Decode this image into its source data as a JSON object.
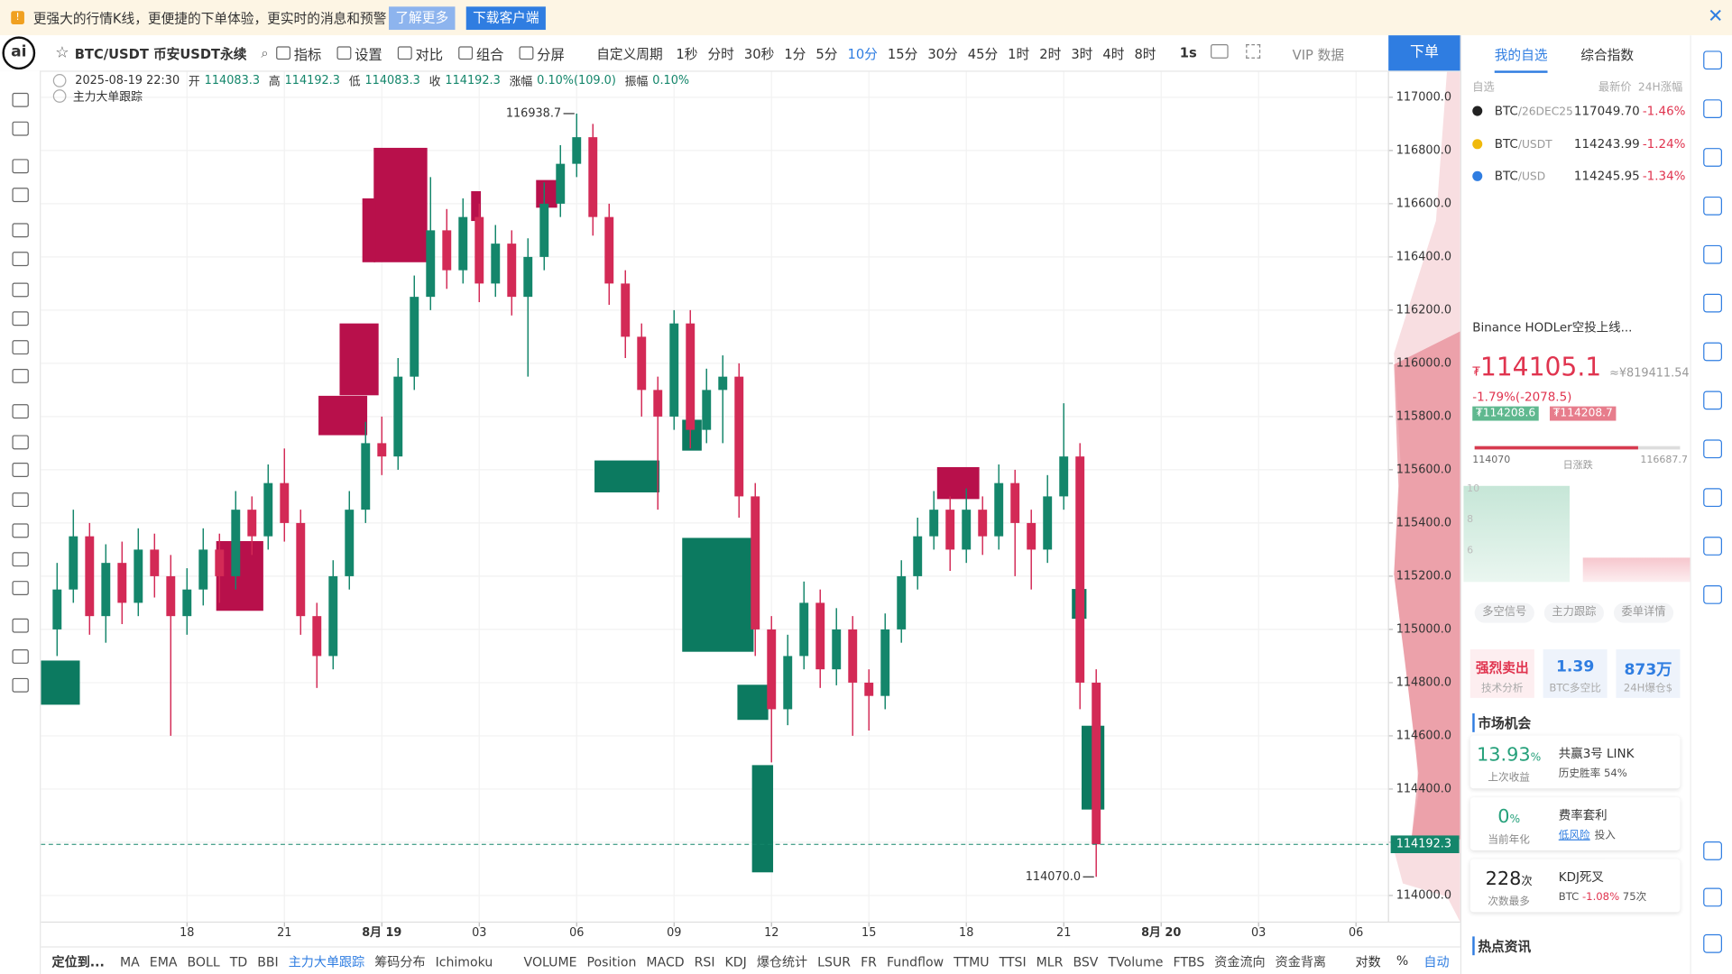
{
  "banner": {
    "text": "更强大的行情K线，更便捷的下单体验，更实时的消息和预警",
    "learn_more": "了解更多",
    "download": "下载客户端"
  },
  "toolbar": {
    "symbol": "BTC/USDT 币安USDT永续",
    "tools": [
      "指标",
      "设置",
      "对比",
      "组合",
      "分屏"
    ],
    "custom_period": "自定义周期",
    "periods": [
      "1秒",
      "分时",
      "30秒",
      "1分",
      "5分",
      "10分",
      "15分",
      "30分",
      "45分",
      "1时",
      "2时",
      "3时",
      "4时",
      "8时"
    ],
    "active_period": "10分",
    "resolution": "1s",
    "vip": "VIP 数据",
    "order": "下单"
  },
  "info": {
    "datetime": "2025-08-19 22:30",
    "fields": [
      {
        "label": "开",
        "value": "114083.3"
      },
      {
        "label": "高",
        "value": "114192.3"
      },
      {
        "label": "低",
        "value": "114083.3"
      },
      {
        "label": "收",
        "value": "114192.3"
      },
      {
        "label": "涨幅",
        "value": "0.10%(109.0)"
      },
      {
        "label": "振幅",
        "value": "0.10%"
      }
    ]
  },
  "indicator_label": "主力大单跟踪",
  "chart_data": {
    "type": "candlestick",
    "up_color": "#14866b",
    "down_color": "#d32a56",
    "xlim": [
      -9,
      74
    ],
    "ylim": [
      113900,
      117100
    ],
    "grid": true,
    "xticks": [
      {
        "value": 0,
        "label": "18"
      },
      {
        "value": 6,
        "label": "21"
      },
      {
        "value": 12,
        "label": "8月 19"
      },
      {
        "value": 18,
        "label": "03"
      },
      {
        "value": 24,
        "label": "06"
      },
      {
        "value": 30,
        "label": "09"
      },
      {
        "value": 36,
        "label": "12"
      },
      {
        "value": 42,
        "label": "15"
      },
      {
        "value": 48,
        "label": "18"
      },
      {
        "value": 54,
        "label": "21"
      },
      {
        "value": 60,
        "label": "8月 20"
      },
      {
        "value": 66,
        "label": "03"
      },
      {
        "value": 72,
        "label": "06"
      }
    ],
    "yticks": [
      {
        "value": 114000,
        "label": "114000.0"
      },
      {
        "value": 114200,
        "label": "114200.0"
      },
      {
        "value": 114400,
        "label": "114400.0"
      },
      {
        "value": 114600,
        "label": "114600.0"
      },
      {
        "value": 114800,
        "label": "114800.0"
      },
      {
        "value": 115000,
        "label": "115000.0"
      },
      {
        "value": 115200,
        "label": "115200.0"
      },
      {
        "value": 115400,
        "label": "115400.0"
      },
      {
        "value": 115600,
        "label": "115600.0"
      },
      {
        "value": 115800,
        "label": "115800.0"
      },
      {
        "value": 116000,
        "label": "116000.0"
      },
      {
        "value": 116200,
        "label": "116200.0"
      },
      {
        "value": 116400,
        "label": "116400.0"
      },
      {
        "value": 116600,
        "label": "116600.0"
      },
      {
        "value": 116800,
        "label": "116800.0"
      },
      {
        "value": 117000,
        "label": "117000.0"
      }
    ],
    "x": [
      -8,
      -7,
      -6,
      -5,
      -4,
      -3,
      -2,
      -1,
      0,
      1,
      2,
      3,
      4,
      5,
      6,
      7,
      8,
      9,
      10,
      11,
      12,
      13,
      14,
      15,
      16,
      17,
      18,
      19,
      20,
      21,
      22,
      23,
      24,
      25,
      26,
      27,
      28,
      29,
      30,
      31,
      32,
      33,
      34,
      35,
      36,
      37,
      38,
      39,
      40,
      41,
      42,
      43,
      44,
      45,
      46,
      47,
      48,
      49,
      50,
      51,
      52,
      53,
      54,
      55,
      56
    ],
    "open": [
      115000,
      115150,
      115350,
      115050,
      115250,
      115100,
      115300,
      115200,
      115050,
      115150,
      115300,
      115200,
      115450,
      115350,
      115550,
      115400,
      115050,
      114900,
      115200,
      115450,
      115700,
      115650,
      115950,
      116250,
      116500,
      116350,
      116550,
      116300,
      116450,
      116250,
      116400,
      116600,
      116750,
      116850,
      116550,
      116300,
      116100,
      115900,
      115800,
      116150,
      115750,
      115900,
      115950,
      115500,
      115000,
      114700,
      114900,
      115100,
      114850,
      115000,
      114800,
      114750,
      115000,
      115200,
      115350,
      115450,
      115300,
      115450,
      115350,
      115550,
      115400,
      115300,
      115500,
      115650,
      114800
    ],
    "high": [
      115250,
      115450,
      115400,
      115320,
      115330,
      115380,
      115360,
      115280,
      115230,
      115380,
      115360,
      115520,
      115500,
      115620,
      115680,
      115450,
      115100,
      115260,
      115520,
      115780,
      115800,
      116020,
      116330,
      116700,
      116580,
      116620,
      116600,
      116520,
      116500,
      116470,
      116680,
      116820,
      116938.7,
      116900,
      116600,
      116350,
      116150,
      115950,
      116200,
      116200,
      115980,
      116030,
      116000,
      115550,
      115050,
      114980,
      115180,
      115150,
      115080,
      115050,
      114850,
      115060,
      115260,
      115420,
      115520,
      115500,
      115530,
      115500,
      115620,
      115600,
      115450,
      115580,
      115850,
      115700,
      114850
    ],
    "low": [
      114900,
      115100,
      114980,
      114950,
      115020,
      115050,
      115120,
      114600,
      114980,
      115090,
      115100,
      115150,
      115280,
      115300,
      115330,
      114980,
      114780,
      114850,
      115150,
      115400,
      115580,
      115600,
      115900,
      116200,
      116280,
      116300,
      116230,
      116250,
      116180,
      115950,
      116350,
      116550,
      116700,
      116480,
      116220,
      116020,
      115800,
      115450,
      115750,
      115680,
      115700,
      115700,
      115420,
      114900,
      114500,
      114640,
      114850,
      114780,
      114790,
      114600,
      114620,
      114700,
      114950,
      115150,
      115300,
      115220,
      115250,
      115280,
      115300,
      115200,
      115150,
      115250,
      115450,
      114700,
      114070
    ],
    "close": [
      115150,
      115350,
      115050,
      115250,
      115100,
      115300,
      115200,
      115050,
      115150,
      115300,
      115200,
      115450,
      115350,
      115550,
      115400,
      115050,
      114900,
      115200,
      115450,
      115700,
      115650,
      115950,
      116250,
      116500,
      116350,
      116550,
      116300,
      116450,
      116250,
      116400,
      116600,
      116750,
      116850,
      116550,
      116300,
      116100,
      115900,
      115800,
      116150,
      115750,
      115900,
      115950,
      115500,
      115000,
      114700,
      114900,
      115100,
      114850,
      115000,
      114800,
      114750,
      115000,
      115200,
      115350,
      115450,
      115300,
      115450,
      115350,
      115550,
      115400,
      115300,
      115500,
      115650,
      114800,
      114192.3
    ],
    "high_label": "116938.7",
    "low_label": "114070.0",
    "blocks": [
      {
        "color": "#b8104b",
        "x": [
          11.5,
          14.8
        ],
        "price": [
          116380,
          116810
        ]
      },
      {
        "color": "#b8104b",
        "x": [
          10.8,
          11.6
        ],
        "price": [
          116380,
          116620
        ]
      },
      {
        "color": "#b8104b",
        "x": [
          9.4,
          11.8
        ],
        "price": [
          115880,
          116150
        ]
      },
      {
        "color": "#b8104b",
        "x": [
          8.1,
          11.1
        ],
        "price": [
          115730,
          115878
        ]
      },
      {
        "color": "#b8104b",
        "x": [
          1.8,
          4.7
        ],
        "price": [
          115070,
          115332
        ]
      },
      {
        "color": "#b8104b",
        "x": [
          21.5,
          22.8
        ],
        "price": [
          116585,
          116689
        ]
      },
      {
        "color": "#b8104b",
        "x": [
          17.5,
          18.1
        ],
        "price": [
          116535,
          116647
        ]
      },
      {
        "color": "#b8104b",
        "x": [
          46.2,
          48.8
        ],
        "price": [
          115490,
          115610
        ]
      },
      {
        "color": "#0c7a60",
        "x": [
          -9,
          -6.6
        ],
        "price": [
          114717,
          114883
        ]
      },
      {
        "color": "#0c7a60",
        "x": [
          25.1,
          29.1
        ],
        "price": [
          115515,
          115635
        ]
      },
      {
        "color": "#0c7a60",
        "x": [
          30.5,
          34.9
        ],
        "price": [
          114916,
          115344
        ]
      },
      {
        "color": "#0c7a60",
        "x": [
          30.5,
          31.7
        ],
        "price": [
          115672,
          115788
        ]
      },
      {
        "color": "#0c7a60",
        "x": [
          33.9,
          35.8
        ],
        "price": [
          114660,
          114792
        ]
      },
      {
        "color": "#0c7a60",
        "x": [
          34.8,
          36.1
        ],
        "price": [
          114087,
          114490
        ]
      },
      {
        "color": "#0c7a60",
        "x": [
          55.1,
          56.5
        ],
        "price": [
          114323,
          114638
        ]
      },
      {
        "color": "#0c7a60",
        "x": [
          54.5,
          55.4
        ],
        "price": [
          115040,
          115152
        ]
      }
    ]
  },
  "right_panel": {
    "tabs": [
      "我的自选",
      "综合指数"
    ],
    "list_header": [
      "自选",
      "最新价",
      "24H涨幅"
    ],
    "watchlist": [
      {
        "symbol": "BTC",
        "pair": "/26DEC25",
        "price": "117049.70",
        "change": "-1.46%"
      },
      {
        "symbol": "BTC",
        "pair": "/USDT",
        "price": "114243.99",
        "change": "-1.24%"
      },
      {
        "symbol": "BTC",
        "pair": "/USD",
        "price": "114245.95",
        "change": "-1.34%"
      }
    ],
    "news": "Binance HODLer空投上线...",
    "price": {
      "symbol": "₮",
      "main": "114105.1",
      "cny": "≈¥819411.54",
      "change": "-1.79%(-2078.5)",
      "bid": "₮114208.6",
      "ask": "₮114208.7"
    },
    "range": {
      "low": "114070",
      "label": "日涨跌",
      "high": "116687.7"
    },
    "mini_ticks": [
      "10",
      "8",
      "6"
    ],
    "signal_tabs": [
      "多空信号",
      "主力跟踪",
      "委单详情"
    ],
    "stats": [
      {
        "value": "强烈卖出",
        "label": "技术分析"
      },
      {
        "value": "1.39",
        "label": "BTC多空比"
      },
      {
        "value": "873万",
        "label": "24H爆仓$"
      }
    ],
    "market_title": "市场机会",
    "opportunities": [
      {
        "value": "13.93",
        "unit": "%",
        "label": "上次收益",
        "title": "共赢3号 LINK",
        "detail": "历史胜率 54%"
      },
      {
        "value": "0",
        "unit": "%",
        "label": "当前年化",
        "title": "费率套利",
        "tag": "低风险",
        "detail": "投入"
      },
      {
        "value": "228",
        "unit": "次",
        "label": "次数最多",
        "title": "KDJ死叉",
        "detail_prefix": "BTC",
        "detail_change": "-1.08%",
        "detail_suffix": "75次"
      }
    ],
    "hot_title": "热点资讯"
  },
  "bottom_bar": {
    "locate": "定位到...",
    "indicators": [
      "MA",
      "EMA",
      "BOLL",
      "TD",
      "BBI",
      "主力大单跟踪",
      "筹码分布",
      "Ichimoku",
      "VOLUME",
      "Position",
      "MACD",
      "RSI",
      "KDJ",
      "爆仓统计",
      "LSUR",
      "FR",
      "Fundflow",
      "TTMU",
      "TTSI",
      "MLR",
      "BSV",
      "TVolume",
      "FTBS",
      "资金流向",
      "资金背离"
    ],
    "active_indicator": "主力大单跟踪",
    "right": [
      "对数",
      "%",
      "自动"
    ]
  }
}
